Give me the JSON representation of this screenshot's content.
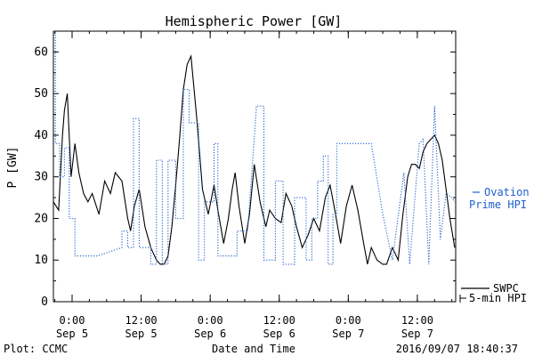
{
  "chart_data": {
    "type": "line",
    "title": "Hemispheric Power [GW]",
    "xlabel": "Date and Time",
    "ylabel": "P [GW]",
    "ylim": [
      0,
      65
    ],
    "xlim": [
      "2016-09-04T20:45",
      "2016-09-07T18:40"
    ],
    "yticks": [
      0,
      10,
      20,
      30,
      40,
      50,
      60
    ],
    "xticks": [
      {
        "x": "2016-09-05T00:00",
        "line1": "0:00",
        "line2": "Sep 5"
      },
      {
        "x": "2016-09-05T12:00",
        "line1": "12:00",
        "line2": "Sep 5"
      },
      {
        "x": "2016-09-06T00:00",
        "line1": "0:00",
        "line2": "Sep 6"
      },
      {
        "x": "2016-09-06T12:00",
        "line1": "12:00",
        "line2": "Sep 6"
      },
      {
        "x": "2016-09-07T00:00",
        "line1": "0:00",
        "line2": "Sep 7"
      },
      {
        "x": "2016-09-07T12:00",
        "line1": "12:00",
        "line2": "Sep 7"
      }
    ],
    "legend_placement": "right",
    "legend": [
      {
        "label_line1": "SWPC",
        "label_line2": "5-min HPI",
        "color": "#000000",
        "style": "solid"
      },
      {
        "label_line1": "Ovation",
        "label_line2": "Prime HPI",
        "color": "#1f5fd0",
        "style": "dotted"
      }
    ],
    "series": [
      {
        "color": "#000000",
        "style": "solid",
        "x": [
          "2016-09-04T20:45",
          "2016-09-04T21:40",
          "2016-09-04T22:20",
          "2016-09-04T22:40",
          "2016-09-04T23:10",
          "2016-09-04T23:50",
          "2016-09-05T00:30",
          "2016-09-05T01:10",
          "2016-09-05T02:00",
          "2016-09-05T02:45",
          "2016-09-05T03:30",
          "2016-09-05T04:40",
          "2016-09-05T05:40",
          "2016-09-05T06:40",
          "2016-09-05T07:30",
          "2016-09-05T08:40",
          "2016-09-05T09:40",
          "2016-09-05T10:10",
          "2016-09-05T10:50",
          "2016-09-05T11:40",
          "2016-09-05T12:40",
          "2016-09-05T13:40",
          "2016-09-05T14:40",
          "2016-09-05T15:20",
          "2016-09-05T16:00",
          "2016-09-05T16:40",
          "2016-09-05T17:20",
          "2016-09-05T18:00",
          "2016-09-05T18:40",
          "2016-09-05T19:20",
          "2016-09-05T20:00",
          "2016-09-05T20:40",
          "2016-09-05T21:40",
          "2016-09-05T22:40",
          "2016-09-05T23:40",
          "2016-09-06T00:40",
          "2016-09-06T01:20",
          "2016-09-06T02:20",
          "2016-09-06T03:10",
          "2016-09-06T03:50",
          "2016-09-06T04:20",
          "2016-09-06T05:00",
          "2016-09-06T06:00",
          "2016-09-06T06:50",
          "2016-09-06T07:40",
          "2016-09-06T08:40",
          "2016-09-06T09:40",
          "2016-09-06T10:20",
          "2016-09-06T11:20",
          "2016-09-06T12:20",
          "2016-09-06T13:10",
          "2016-09-06T14:10",
          "2016-09-06T15:00",
          "2016-09-06T16:00",
          "2016-09-06T17:00",
          "2016-09-06T18:00",
          "2016-09-06T19:00",
          "2016-09-06T20:00",
          "2016-09-06T20:50",
          "2016-09-06T21:40",
          "2016-09-06T22:40",
          "2016-09-06T23:40",
          "2016-09-07T00:40",
          "2016-09-07T01:40",
          "2016-09-07T02:40",
          "2016-09-07T03:20",
          "2016-09-07T04:00",
          "2016-09-07T05:00",
          "2016-09-07T06:00",
          "2016-09-07T06:40",
          "2016-09-07T07:40",
          "2016-09-07T08:40",
          "2016-09-07T09:30",
          "2016-09-07T10:20",
          "2016-09-07T11:00",
          "2016-09-07T11:40",
          "2016-09-07T12:20",
          "2016-09-07T13:00",
          "2016-09-07T13:40",
          "2016-09-07T14:20",
          "2016-09-07T15:00",
          "2016-09-07T15:40",
          "2016-09-07T16:20",
          "2016-09-07T17:00",
          "2016-09-07T17:40",
          "2016-09-07T18:30"
        ],
        "y": [
          24,
          22,
          40,
          46,
          50,
          30,
          38,
          31,
          26,
          24,
          26,
          21,
          29,
          26,
          31,
          29,
          20,
          17,
          23,
          27,
          18,
          13,
          10,
          9,
          9,
          11,
          18,
          28,
          39,
          51,
          57,
          59,
          44,
          27,
          21,
          28,
          22,
          14,
          20,
          27,
          31,
          23,
          14,
          21,
          33,
          24,
          18,
          22,
          20,
          19,
          26,
          23,
          18,
          13,
          16,
          20,
          17,
          25,
          28,
          22,
          14,
          23,
          28,
          22,
          14,
          9,
          13,
          10,
          9,
          9,
          13,
          10,
          21,
          30,
          33,
          33,
          32,
          36,
          38,
          39,
          40,
          38,
          34,
          27,
          20,
          13
        ]
      },
      {
        "color": "#1f5fd0",
        "style": "dotted",
        "x": [
          "2016-09-04T20:45",
          "2016-09-04T21:05",
          "2016-09-04T21:05",
          "2016-09-04T21:50",
          "2016-09-04T21:50",
          "2016-09-04T22:40",
          "2016-09-04T22:40",
          "2016-09-04T23:30",
          "2016-09-04T23:30",
          "2016-09-05T00:30",
          "2016-09-05T00:30",
          "2016-09-05T04:20",
          "2016-09-05T08:40",
          "2016-09-05T08:40",
          "2016-09-05T09:40",
          "2016-09-05T09:40",
          "2016-09-05T10:40",
          "2016-09-05T10:40",
          "2016-09-05T11:40",
          "2016-09-05T11:40",
          "2016-09-05T13:40",
          "2016-09-05T13:40",
          "2016-09-05T14:40",
          "2016-09-05T14:40",
          "2016-09-05T15:40",
          "2016-09-05T15:40",
          "2016-09-05T16:40",
          "2016-09-05T16:40",
          "2016-09-05T18:00",
          "2016-09-05T18:00",
          "2016-09-05T19:20",
          "2016-09-05T19:20",
          "2016-09-05T20:20",
          "2016-09-05T20:20",
          "2016-09-05T22:00",
          "2016-09-05T22:00",
          "2016-09-05T23:00",
          "2016-09-05T23:00",
          "2016-09-06T00:40",
          "2016-09-06T00:40",
          "2016-09-06T01:20",
          "2016-09-06T01:20",
          "2016-09-06T04:40",
          "2016-09-06T04:40",
          "2016-09-06T06:30",
          "2016-09-06T08:00",
          "2016-09-06T08:00",
          "2016-09-06T09:20",
          "2016-09-06T09:20",
          "2016-09-06T10:30",
          "2016-09-06T11:20",
          "2016-09-06T11:20",
          "2016-09-06T12:40",
          "2016-09-06T12:40",
          "2016-09-06T14:40",
          "2016-09-06T14:40",
          "2016-09-06T16:40",
          "2016-09-06T16:40",
          "2016-09-06T17:40",
          "2016-09-06T17:40",
          "2016-09-06T18:40",
          "2016-09-06T18:40",
          "2016-09-06T19:40",
          "2016-09-06T19:40",
          "2016-09-06T20:30",
          "2016-09-06T20:30",
          "2016-09-06T21:20",
          "2016-09-06T21:20",
          "2016-09-06T22:00",
          "2016-09-06T22:00",
          "2016-09-07T04:00",
          "2016-09-07T06:00",
          "2016-09-07T06:00",
          "2016-09-07T07:40",
          "2016-09-07T07:40",
          "2016-09-07T09:40",
          "2016-09-07T09:40",
          "2016-09-07T10:40",
          "2016-09-07T10:40",
          "2016-09-07T12:20",
          "2016-09-07T12:20",
          "2016-09-07T13:00",
          "2016-09-07T13:00",
          "2016-09-07T14:00",
          "2016-09-07T14:00",
          "2016-09-07T15:00",
          "2016-09-07T15:00",
          "2016-09-07T16:00",
          "2016-09-07T16:00",
          "2016-09-07T17:00",
          "2016-09-07T17:00",
          "2016-09-07T18:00",
          "2016-09-07T18:00",
          "2016-09-07T18:30"
        ],
        "y": [
          65,
          65,
          38,
          38,
          30,
          30,
          37,
          37,
          20,
          20,
          11,
          11,
          13,
          17,
          17,
          13,
          13,
          44,
          44,
          13,
          13,
          9,
          9,
          34,
          34,
          9,
          9,
          34,
          34,
          20,
          20,
          51,
          51,
          43,
          43,
          10,
          10,
          24,
          24,
          38,
          38,
          11,
          11,
          17,
          17,
          46,
          47,
          47,
          10,
          10,
          10,
          29,
          29,
          9,
          9,
          25,
          25,
          10,
          10,
          20,
          20,
          29,
          29,
          35,
          35,
          9,
          9,
          21,
          21,
          38,
          38,
          21,
          21,
          10,
          10,
          31,
          31,
          9,
          9,
          38,
          38,
          39,
          39,
          9,
          9,
          47,
          47,
          15,
          15,
          26,
          26,
          25,
          25,
          24
        ]
      }
    ]
  },
  "footer": {
    "plot_label": "Plot: CCMC",
    "timestamp": "2016/09/07 18:40:37"
  }
}
